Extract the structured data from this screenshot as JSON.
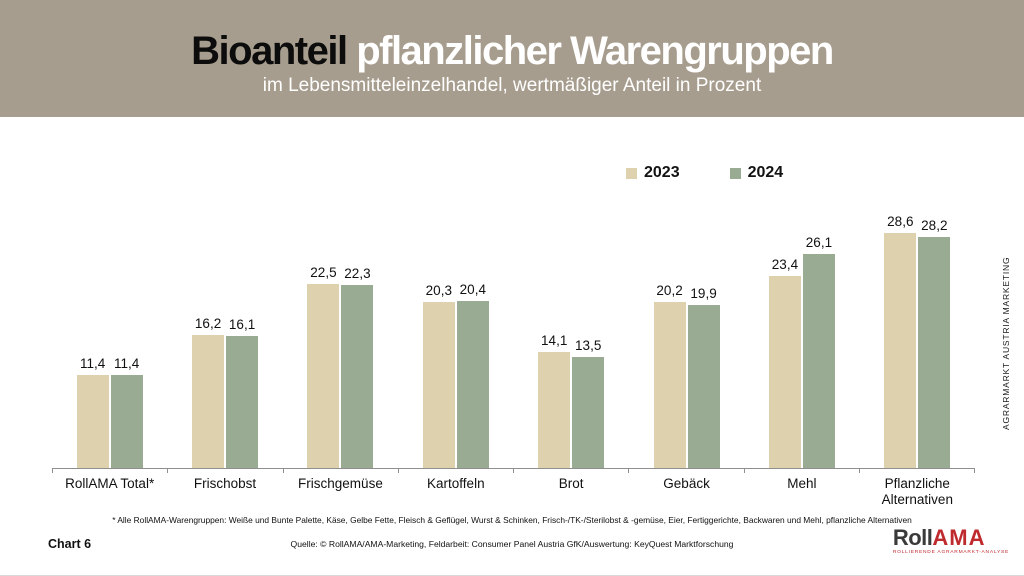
{
  "header": {
    "title_black": "Bioanteil",
    "title_white": " pflanzlicher Warengruppen",
    "subtitle": "im Lebensmitteleinzelhandel, wertmäßiger Anteil in Prozent"
  },
  "colors": {
    "header_background": "#a79d8e",
    "bar_2023": "#ddd1ae",
    "bar_2024": "#9aab94",
    "axis": "#8f8f8f",
    "logo_red": "#bf2a2e"
  },
  "chart_data": {
    "type": "bar",
    "title": "Bioanteil pflanzlicher Warengruppen",
    "subtitle": "im Lebensmitteleinzelhandel, wertmäßiger Anteil in Prozent",
    "categories": [
      "RollAMA Total*",
      "Frischobst",
      "Frischgemüse",
      "Kartoffeln",
      "Brot",
      "Gebäck",
      "Mehl",
      "Pflanzliche Alternativen"
    ],
    "series": [
      {
        "name": "2023",
        "color": "#ddd1ae",
        "values": [
          11.4,
          16.2,
          22.5,
          20.3,
          14.1,
          20.2,
          23.4,
          28.6
        ],
        "labels": [
          "11,4",
          "16,2",
          "22,5",
          "20,3",
          "14,1",
          "20,2",
          "23,4",
          "28,6"
        ]
      },
      {
        "name": "2024",
        "color": "#9aab94",
        "values": [
          11.4,
          16.1,
          22.3,
          20.4,
          13.5,
          19.9,
          26.1,
          28.2
        ],
        "labels": [
          "11,4",
          "16,1",
          "22,3",
          "20,4",
          "13,5",
          "19,9",
          "26,1",
          "28,2"
        ]
      }
    ],
    "ylim": [
      0,
      31
    ],
    "unit": "percent",
    "grid": false,
    "value_labels_shown": true,
    "legend_position": "top-right"
  },
  "side_text": "AGRARMARKT AUSTRIA MARKETING",
  "footnote": "* Alle RollAMA-Warengruppen: Weiße und Bunte Palette, Käse, Gelbe Fette, Fleisch & Geflügel, Wurst & Schinken, Frisch-/TK-/Sterilobst & -gemüse, Eier, Fertiggerichte, Backwaren und Mehl, pflanzliche Alternativen",
  "source": "Quelle: © RollAMA/AMA-Marketing, Feldarbeit: Consumer Panel Austria GfK/Auswertung: KeyQuest Marktforschung",
  "chart_number": "Chart 6",
  "logo": {
    "text_dark": "Roll",
    "text_red": "AMA",
    "tagline": "ROLLIERENDE AGRARMARKT-ANALYSE"
  }
}
